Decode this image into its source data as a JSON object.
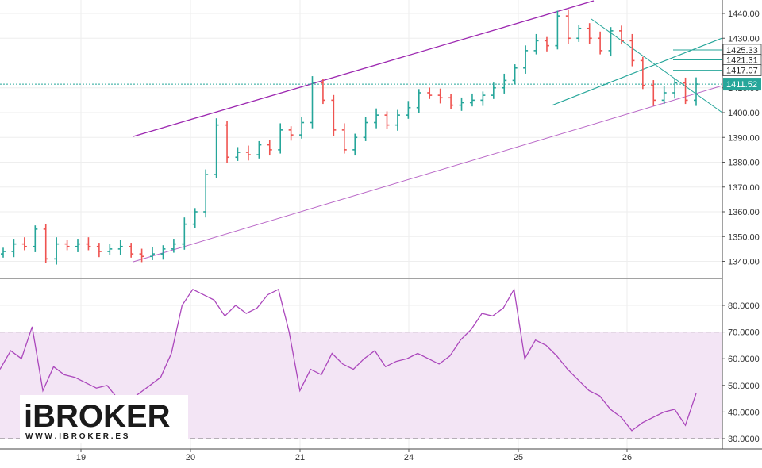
{
  "chart_data": [
    {
      "type": "ohlc",
      "x_tick_labels": [
        "19",
        "20",
        "21",
        "24",
        "25",
        "26"
      ],
      "y_tick_labels": [
        "1340.00",
        "1350.00",
        "1360.00",
        "1370.00",
        "1380.00",
        "1390.00",
        "1400.00",
        "1410.00",
        "1420.00",
        "1430.00",
        "1440.00"
      ],
      "ylim": [
        1334,
        1443
      ],
      "grid": true,
      "last_price_label": "1411.52",
      "current_price": 1411.5,
      "price_labels": [
        "1425.33",
        "1421.31",
        "1417.07"
      ],
      "price_levels": [
        1425.3,
        1421.3,
        1417.1
      ],
      "close_path": [
        1344,
        1347,
        1346,
        1353,
        1341,
        1347,
        1346,
        1347,
        1346,
        1344,
        1345,
        1346,
        1343,
        1342,
        1343,
        1345,
        1347,
        1355,
        1360,
        1375,
        1395,
        1382,
        1384,
        1383,
        1387,
        1385,
        1393,
        1391,
        1396,
        1412,
        1405,
        1393,
        1385,
        1390,
        1396,
        1399,
        1395,
        1399,
        1402,
        1408,
        1407,
        1406,
        1403,
        1404,
        1405,
        1407,
        1410,
        1413,
        1418,
        1425,
        1429,
        1427,
        1439,
        1430,
        1434,
        1430,
        1425,
        1433,
        1429,
        1421,
        1411,
        1405,
        1408,
        1412,
        1405,
        1411.5
      ],
      "series_colors": {
        "up": "#26a69a",
        "down": "#ef5350"
      },
      "annotation_colors": {
        "channel": "#9c27b0",
        "wedge": "#26a69a"
      }
    },
    {
      "type": "line",
      "name": "RSI",
      "y_tick_labels": [
        "30.0000",
        "40.0000",
        "50.0000",
        "60.0000",
        "70.0000",
        "80.0000"
      ],
      "ylim": [
        27,
        89
      ],
      "band": [
        30,
        70
      ],
      "x": [
        0,
        0.5,
        1,
        1.5,
        2,
        2.5,
        3,
        3.5,
        4,
        4.5,
        5,
        5.5,
        6,
        6.5,
        7,
        7.5,
        8,
        8.5,
        9,
        9.5,
        10,
        10.5,
        11,
        11.5,
        12,
        12.5,
        13,
        13.5,
        14,
        14.5,
        15,
        15.5,
        16,
        16.5,
        17,
        17.5,
        18,
        18.5,
        19,
        19.5,
        20,
        20.5,
        21,
        21.5,
        22,
        22.5,
        23,
        23.5,
        24,
        24.5,
        25,
        25.5,
        26,
        26.5,
        27,
        27.5,
        28,
        28.5,
        29,
        29.5,
        30,
        30.5,
        31,
        31.5,
        32,
        32.5
      ],
      "values": [
        56,
        63,
        60,
        72,
        48,
        57,
        54,
        53,
        51,
        49,
        50,
        45,
        44,
        47,
        50,
        53,
        62,
        80,
        86,
        84,
        82,
        76,
        80,
        77,
        79,
        84,
        86,
        70,
        48,
        56,
        54,
        62,
        58,
        56,
        60,
        63,
        57,
        59,
        60,
        62,
        60,
        58,
        61,
        67,
        71,
        77,
        76,
        79,
        86,
        60,
        67,
        65,
        61,
        56,
        52,
        48,
        46,
        41,
        38,
        33,
        36,
        38,
        40,
        41,
        35,
        47
      ],
      "series_colors": {
        "line": "#ab47bc",
        "band": "#f3e5f5"
      }
    }
  ],
  "logo": {
    "text": "iBROKER",
    "subtitle": "W W W . I B R O K E R . E S"
  }
}
